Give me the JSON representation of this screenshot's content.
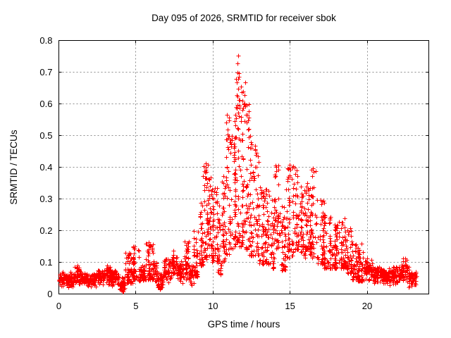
{
  "chart_data": {
    "type": "scatter",
    "title": "Day 095 of 2026, SRMTID for receiver sbok",
    "xlabel": "GPS time / hours",
    "ylabel": "SRMTID / TECUs",
    "xlim": [
      0,
      24
    ],
    "ylim": [
      0,
      0.8
    ],
    "xticks": [
      {
        "v": 0,
        "label": "0"
      },
      {
        "v": 5,
        "label": "5"
      },
      {
        "v": 10,
        "label": "10"
      },
      {
        "v": 15,
        "label": "15"
      },
      {
        "v": 20,
        "label": "20"
      }
    ],
    "yticks": [
      {
        "v": 0,
        "label": "0"
      },
      {
        "v": 0.1,
        "label": "0.1"
      },
      {
        "v": 0.2,
        "label": "0.2"
      },
      {
        "v": 0.3,
        "label": "0.3"
      },
      {
        "v": 0.4,
        "label": "0.4"
      },
      {
        "v": 0.5,
        "label": "0.5"
      },
      {
        "v": 0.6,
        "label": "0.6"
      },
      {
        "v": 0.7,
        "label": "0.7"
      },
      {
        "v": 0.8,
        "label": "0.8"
      }
    ],
    "grid": true,
    "legend": "none",
    "marker": {
      "shape": "plus",
      "color": "#ff0000",
      "size": 7
    },
    "frame_color": "#000000",
    "grid_color": "#8c8c8c",
    "seed": 95,
    "envelope_bins": [
      [
        0.0,
        0.5,
        0.02,
        0.075,
        58
      ],
      [
        0.5,
        1.0,
        0.018,
        0.072,
        58
      ],
      [
        1.0,
        1.45,
        0.025,
        0.088,
        52
      ],
      [
        1.45,
        1.9,
        0.02,
        0.07,
        52
      ],
      [
        1.9,
        2.4,
        0.02,
        0.075,
        58
      ],
      [
        2.4,
        2.9,
        0.025,
        0.08,
        58
      ],
      [
        2.9,
        3.4,
        0.028,
        0.088,
        58
      ],
      [
        3.4,
        3.9,
        0.022,
        0.08,
        58
      ],
      [
        3.9,
        4.3,
        0.004,
        0.055,
        38
      ],
      [
        4.3,
        4.8,
        0.035,
        0.13,
        52
      ],
      [
        4.8,
        5.2,
        0.045,
        0.15,
        44
      ],
      [
        5.2,
        5.6,
        0.03,
        0.1,
        44
      ],
      [
        5.6,
        6.1,
        0.045,
        0.16,
        52
      ],
      [
        6.1,
        6.4,
        0.035,
        0.11,
        32
      ],
      [
        6.4,
        6.8,
        0.012,
        0.07,
        42
      ],
      [
        6.8,
        7.3,
        0.035,
        0.12,
        52
      ],
      [
        7.3,
        7.7,
        0.05,
        0.135,
        44
      ],
      [
        7.7,
        8.1,
        0.03,
        0.11,
        44
      ],
      [
        8.1,
        8.45,
        0.045,
        0.165,
        38
      ],
      [
        8.45,
        8.75,
        0.02,
        0.1,
        32
      ],
      [
        8.75,
        9.05,
        0.055,
        0.2,
        34
      ],
      [
        9.05,
        9.35,
        0.09,
        0.29,
        36
      ],
      [
        9.35,
        9.65,
        0.11,
        0.41,
        38
      ],
      [
        9.65,
        9.95,
        0.12,
        0.37,
        38
      ],
      [
        9.95,
        10.25,
        0.1,
        0.34,
        38
      ],
      [
        10.25,
        10.55,
        0.06,
        0.28,
        36
      ],
      [
        10.55,
        10.85,
        0.1,
        0.38,
        38
      ],
      [
        10.85,
        11.15,
        0.12,
        0.56,
        40
      ],
      [
        11.15,
        11.45,
        0.14,
        0.5,
        40
      ],
      [
        11.45,
        11.75,
        0.15,
        0.69,
        44
      ],
      [
        11.75,
        12.05,
        0.15,
        0.64,
        42
      ],
      [
        12.05,
        12.35,
        0.14,
        0.6,
        40
      ],
      [
        12.35,
        12.65,
        0.12,
        0.5,
        40
      ],
      [
        12.65,
        12.95,
        0.12,
        0.47,
        38
      ],
      [
        12.95,
        13.3,
        0.095,
        0.34,
        40
      ],
      [
        13.3,
        13.65,
        0.095,
        0.33,
        38
      ],
      [
        13.65,
        14.0,
        0.08,
        0.3,
        38
      ],
      [
        14.0,
        14.3,
        0.14,
        0.41,
        34
      ],
      [
        14.3,
        14.7,
        0.075,
        0.28,
        42
      ],
      [
        14.7,
        15.2,
        0.115,
        0.41,
        52
      ],
      [
        15.2,
        15.6,
        0.14,
        0.39,
        42
      ],
      [
        15.6,
        16.0,
        0.115,
        0.34,
        42
      ],
      [
        16.0,
        16.3,
        0.14,
        0.35,
        34
      ],
      [
        16.3,
        16.8,
        0.115,
        0.395,
        52
      ],
      [
        16.8,
        17.2,
        0.095,
        0.3,
        42
      ],
      [
        17.2,
        17.6,
        0.08,
        0.25,
        42
      ],
      [
        17.6,
        18.1,
        0.08,
        0.22,
        55
      ],
      [
        18.1,
        18.6,
        0.08,
        0.24,
        55
      ],
      [
        18.6,
        19.0,
        0.065,
        0.21,
        44
      ],
      [
        19.0,
        19.4,
        0.045,
        0.16,
        42
      ],
      [
        19.4,
        19.8,
        0.04,
        0.14,
        42
      ],
      [
        19.8,
        20.4,
        0.035,
        0.12,
        64
      ],
      [
        20.4,
        21.0,
        0.028,
        0.09,
        66
      ],
      [
        21.0,
        21.6,
        0.025,
        0.085,
        66
      ],
      [
        21.6,
        22.2,
        0.028,
        0.09,
        66
      ],
      [
        22.2,
        22.7,
        0.035,
        0.115,
        55
      ],
      [
        22.7,
        23.2,
        0.018,
        0.075,
        52
      ]
    ],
    "outlier_points": [
      [
        11.62,
        0.752
      ],
      [
        11.6,
        0.728
      ],
      [
        11.57,
        0.7
      ],
      [
        11.66,
        0.697
      ],
      [
        11.7,
        0.686
      ],
      [
        11.55,
        0.668
      ],
      [
        11.63,
        0.648
      ],
      [
        11.52,
        0.628
      ],
      [
        11.74,
        0.612
      ],
      [
        11.48,
        0.59
      ],
      [
        11.8,
        0.655
      ],
      [
        11.85,
        0.636
      ],
      [
        11.92,
        0.61
      ],
      [
        11.97,
        0.588
      ],
      [
        12.1,
        0.668
      ],
      [
        12.06,
        0.6
      ],
      [
        12.14,
        0.565
      ],
      [
        12.18,
        0.54
      ],
      [
        11.44,
        0.565
      ],
      [
        11.4,
        0.545
      ],
      [
        10.9,
        0.565
      ],
      [
        10.87,
        0.542
      ],
      [
        10.94,
        0.52
      ],
      [
        11.02,
        0.498
      ],
      [
        11.08,
        0.478
      ],
      [
        9.55,
        0.412
      ],
      [
        9.51,
        0.398
      ],
      [
        9.58,
        0.385
      ],
      [
        12.45,
        0.478
      ],
      [
        12.5,
        0.462
      ],
      [
        12.72,
        0.455
      ],
      [
        12.78,
        0.44
      ],
      [
        13.45,
        0.33
      ],
      [
        14.08,
        0.402
      ],
      [
        14.12,
        0.388
      ],
      [
        14.98,
        0.408
      ],
      [
        15.04,
        0.392
      ],
      [
        15.3,
        0.398
      ],
      [
        16.48,
        0.396
      ],
      [
        16.53,
        0.385
      ],
      [
        5.82,
        0.163
      ],
      [
        5.87,
        0.152
      ],
      [
        8.18,
        0.166
      ],
      [
        8.23,
        0.155
      ],
      [
        4.93,
        0.15
      ],
      [
        7.44,
        0.137
      ],
      [
        19.63,
        0.158
      ],
      [
        22.48,
        0.113
      ],
      [
        22.55,
        0.108
      ],
      [
        1.22,
        0.089
      ],
      [
        3.12,
        0.091
      ],
      [
        6.55,
        0.014
      ],
      [
        4.12,
        0.007
      ],
      [
        4.05,
        0.012
      ]
    ]
  }
}
